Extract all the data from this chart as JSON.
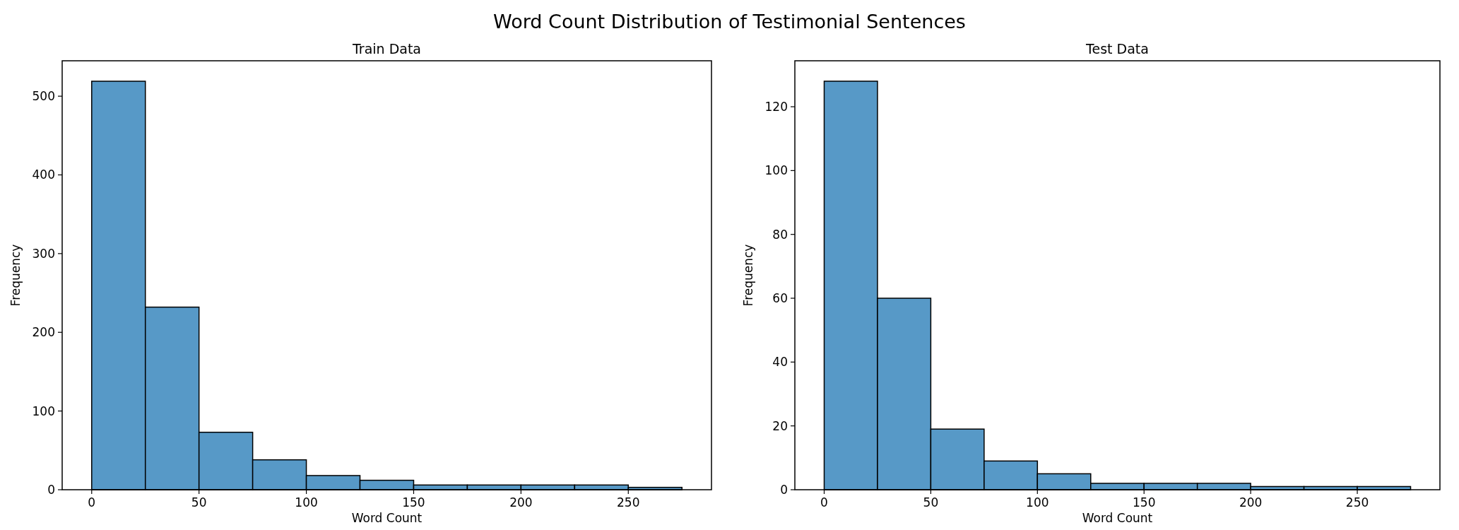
{
  "chart_data": [
    {
      "type": "histogram",
      "title": "Train Data",
      "xlabel": "Word Count",
      "ylabel": "Frequency",
      "color": "#5799c7",
      "bins": [
        0,
        25,
        50,
        75,
        100,
        125,
        150,
        175,
        200,
        225,
        250,
        275
      ],
      "values": [
        519,
        232,
        73,
        38,
        18,
        12,
        6,
        6,
        6,
        6,
        3
      ],
      "xlim": [
        -13.75,
        288.75
      ],
      "xticks": [
        0,
        50,
        100,
        150,
        200,
        250
      ],
      "ylim": [
        0,
        545
      ],
      "yticks": [
        0,
        100,
        200,
        300,
        400,
        500
      ],
      "grid": false,
      "annotations": [
        "Word Count Distribution of Testimonial Sentences"
      ]
    },
    {
      "type": "histogram",
      "title": "Test Data",
      "xlabel": "Word Count",
      "ylabel": "Frequency",
      "color": "#5799c7",
      "bins": [
        0,
        25,
        50,
        75,
        100,
        125,
        150,
        175,
        200,
        225,
        250,
        275
      ],
      "values": [
        128,
        60,
        19,
        9,
        5,
        2,
        2,
        2,
        1,
        1,
        1
      ],
      "xlim": [
        -13.75,
        288.75
      ],
      "xticks": [
        0,
        50,
        100,
        150,
        200,
        250
      ],
      "ylim": [
        0,
        134.4
      ],
      "yticks": [
        0,
        20,
        40,
        60,
        80,
        100,
        120
      ],
      "grid": false
    }
  ]
}
